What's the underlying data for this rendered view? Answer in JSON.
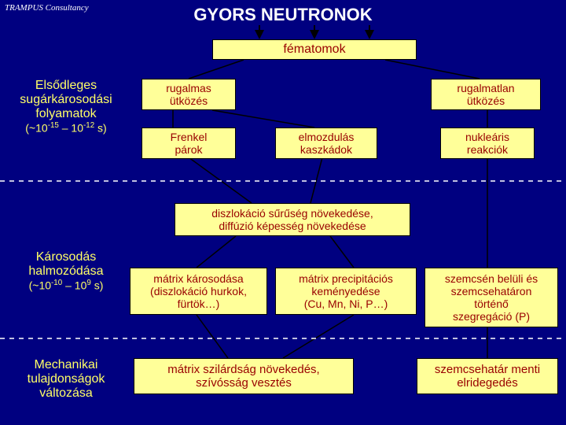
{
  "brand": "TRAMPUS Consultancy",
  "title": "GYORS NEUTRONOK",
  "boxes": {
    "fematomok": "fématomok",
    "rugalmas": "rugalmas\nütközés",
    "rugalmatlan": "rugalmatlan\nütközés",
    "frenkel": "Frenkel\npárok",
    "elmozdulas": "elmozdulás\nkaszkádok",
    "nuklearis": "nukleáris\nreakciók",
    "diszlokacio": "diszlokáció sűrűség növekedése,\ndiffúzió képesség növekedése",
    "matrix_karos": "mátrix károsodása\n(diszlokáció hurkok,\nfürtök…)",
    "matrix_precip": "mátrix precipitációs\nkeményedése\n(Cu, Mn, Ni, P…)",
    "szemcsen": "szemcsén belüli és\nszemcsehatáron\ntörténő\nszegregáció  (P)",
    "matrix_szilard": "mátrix szilárdság növekedés,\nszívósság vesztés",
    "szemcsehatarmenti": "szemcsehatár menti\nelridegedés"
  },
  "sides": {
    "elsodleges": "Elsődleges\nsugárkárosodási\nfolyamatok",
    "elsodleges_range": "(~10⁻¹⁵ – 10⁻¹² s)",
    "karosodas": "Károsodás\nhalmozódása",
    "karosodas_range": "(~10⁻¹⁰ – 10⁹ s)",
    "mechanikai": "Mechanikai\ntulajdonságok\nváltozása"
  },
  "colors": {
    "bg": "#000080",
    "box_bg": "#ffff99",
    "box_text": "#990000",
    "side_text": "#ffff66",
    "line": "#000000",
    "dash": "#ffffff"
  }
}
